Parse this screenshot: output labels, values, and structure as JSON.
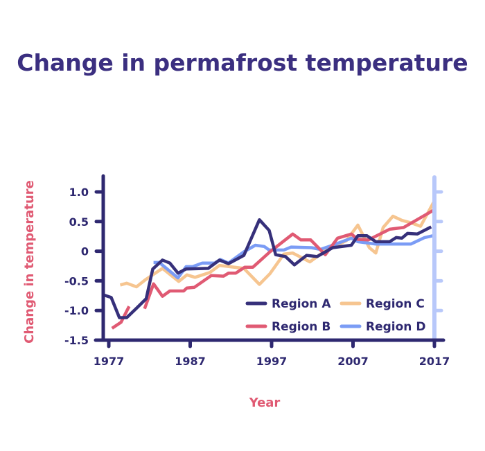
{
  "chart_data": {
    "type": "line",
    "title": "Change in permafrost temperature",
    "xlabel": "Year",
    "ylabel": "Change in temperature",
    "xlim": [
      1977,
      2017
    ],
    "ylim": [
      -1.5,
      1.0
    ],
    "x_ticks": [
      "1977",
      "1987",
      "1997",
      "2007",
      "2017"
    ],
    "y_ticks": [
      "1.0",
      "0.5",
      "0",
      "-0.5",
      "-1.0",
      "-1.5"
    ],
    "grid": false,
    "legend_position": "bottom-right",
    "colors": {
      "axis": "#2e2870",
      "right_axis": "#b8c8fa",
      "label": "#e05a73",
      "title": "#3b2f80"
    },
    "series": [
      {
        "name": "Region A",
        "color": "#36307a",
        "x": [
          1976.4,
          1977.3,
          1978.3,
          1979.2,
          1980.5,
          1981.6,
          1982.4,
          1983.6,
          1984.5,
          1985.5,
          1986.5,
          1989.2,
          1990.6,
          1991.7,
          1993.6,
          1995.5,
          1996.7,
          1997.5,
          1998.7,
          1999.8,
          2001.3,
          2002.6,
          2004.5,
          2006.8,
          2007.6,
          2008.7,
          2009.8,
          2011.5,
          2012.3,
          2013,
          2013.7,
          2014.9,
          2016.6
        ],
        "y": [
          -0.74,
          -0.78,
          -1.12,
          -1.12,
          -0.95,
          -0.8,
          -0.3,
          -0.15,
          -0.2,
          -0.37,
          -0.3,
          -0.29,
          -0.15,
          -0.21,
          -0.07,
          0.53,
          0.35,
          -0.06,
          -0.09,
          -0.23,
          -0.07,
          -0.09,
          0.06,
          0.1,
          0.26,
          0.26,
          0.16,
          0.16,
          0.23,
          0.22,
          0.3,
          0.29,
          0.41
        ]
      },
      {
        "name": "Region B",
        "color": "#e05a73",
        "x": [
          1977.4,
          1978.5,
          1979.5,
          1980.5,
          1981.4,
          1982.5,
          1983.6,
          1984.5,
          1986.2,
          1986.6,
          1987.5,
          1989.6,
          1991.1,
          1991.7,
          1992.6,
          1993.7,
          1994.7,
          1996.8,
          1999.6,
          2000.6,
          2001.8,
          2003.6,
          2005.1,
          2006.8,
          2007.6,
          2008.9,
          2011.5,
          2013.2,
          2017
        ],
        "y": [
          -1.3,
          -1.2,
          -0.93,
          null,
          -0.97,
          -0.55,
          -0.76,
          -0.67,
          -0.67,
          -0.62,
          -0.61,
          -0.41,
          -0.42,
          -0.37,
          -0.37,
          -0.27,
          -0.27,
          -0.01,
          0.29,
          0.19,
          0.19,
          -0.06,
          0.22,
          0.29,
          0.2,
          0.19,
          0.37,
          0.4,
          0.7
        ]
      },
      {
        "name": "Region C",
        "color": "#f6c590",
        "x": [
          1978.4,
          1979.2,
          1980.4,
          1981.5,
          1983.6,
          1985.6,
          1986.6,
          1987.6,
          1989.4,
          1990.6,
          1993.6,
          1995.5,
          1996.8,
          1998.5,
          1999.6,
          2001.7,
          2003.4,
          2006.2,
          2007.6,
          2009,
          2009.8,
          2010.7,
          2011.9,
          2013,
          2014.1,
          2015.3,
          2017
        ],
        "y": [
          -0.57,
          -0.54,
          -0.6,
          -0.48,
          -0.29,
          -0.51,
          -0.4,
          -0.44,
          -0.36,
          -0.24,
          -0.29,
          -0.56,
          -0.38,
          -0.05,
          -0.03,
          -0.18,
          -0.01,
          0.18,
          0.44,
          0.06,
          -0.03,
          0.4,
          0.59,
          0.52,
          0.48,
          0.42,
          0.85
        ]
      },
      {
        "name": "Region D",
        "color": "#7b9cf5",
        "x": [
          1982.5,
          1983.2,
          1985.5,
          1986.5,
          1987.3,
          1988.5,
          1990,
          1990.7,
          1991.7,
          1993.6,
          1995,
          1996.1,
          1996.7,
          1998.5,
          1999.4,
          2001.9,
          2003,
          2004.5,
          2006.8,
          2007.6,
          2009.8,
          2014.1,
          2015.8,
          2016.8
        ],
        "y": [
          -0.19,
          -0.19,
          -0.45,
          -0.26,
          -0.26,
          -0.2,
          -0.2,
          -0.14,
          -0.2,
          -0.01,
          0.1,
          0.08,
          0.02,
          0.02,
          0.07,
          0.06,
          0.03,
          0.1,
          0.22,
          0.16,
          0.12,
          0.12,
          0.23,
          0.26
        ]
      }
    ]
  }
}
